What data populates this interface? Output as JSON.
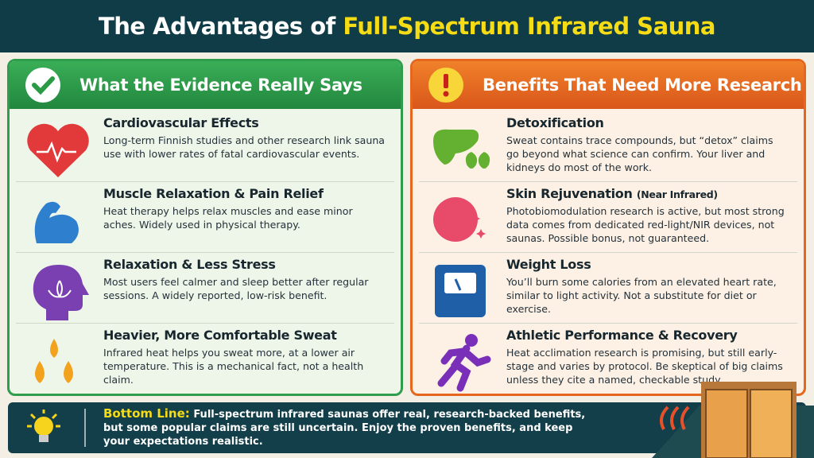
{
  "header": {
    "title_start": "The Advantages of",
    "title_highlight": "Full-Spectrum Infrared Sauna"
  },
  "left_panel": {
    "title": "What the Evidence Really Says",
    "items": [
      {
        "title": "Cardiovascular Effects",
        "text": "Long-term Finnish studies and other research link sauna use with lower rates of fatal cardiovascular events."
      },
      {
        "title": "Muscle Relaxation & Pain Relief",
        "text": "Heat therapy helps relax muscles and ease minor aches. Widely used in physical therapy."
      },
      {
        "title": "Relaxation & Less Stress",
        "text": "Most users feel calmer and sleep better after regular sessions. A widely reported, low-risk benefit."
      },
      {
        "title": "Heavier, More Comfortable Sweat",
        "text": "Infrared heat helps you sweat more, at a lower air temperature. This is a mechanical fact, not a health claim."
      }
    ]
  },
  "right_panel": {
    "title": "Benefits That Need More Research",
    "items": [
      {
        "title": "Detoxification",
        "text": "Sweat contains trace compounds, but “detox” claims go beyond what science can confirm. Your liver and kidneys do most of the work."
      },
      {
        "title": "Skin Rejuvenation",
        "note": "(Near Infrared)",
        "text": "Photobiomodulation research is active, but most strong data comes from dedicated red-light/NIR devices, not saunas. Possible bonus, not guaranteed."
      },
      {
        "title": "Weight Loss",
        "text": "You’ll burn some calories from an elevated heart rate, similar to light activity. Not a substitute for diet or exercise."
      },
      {
        "title": "Athletic Performance & Recovery",
        "text": "Heat acclimation research is promising, but still early-stage and varies by protocol. Be skeptical of big claims unless they cite a named, checkable study."
      }
    ]
  },
  "bottom": {
    "label": "Bottom Line:",
    "text": "Full-spectrum infrared saunas offer real, research-backed benefits, but some popular claims are still uncertain. Enjoy the proven benefits, and keep your expectations realistic."
  }
}
